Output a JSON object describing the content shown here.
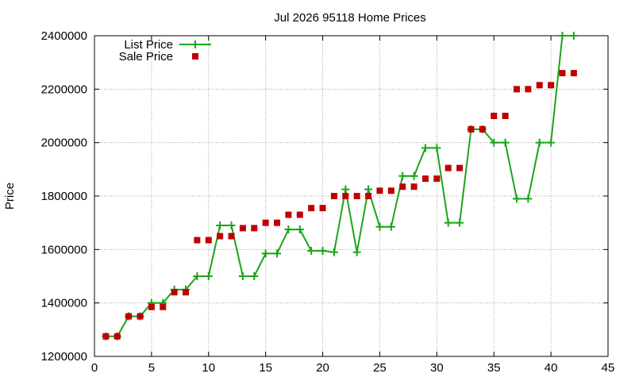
{
  "chart_data": {
    "type": "scatter",
    "title": "Jul 2026 95118 Home Prices",
    "xlabel": "",
    "ylabel": "Price",
    "xlim": [
      0,
      45
    ],
    "ylim": [
      1200000,
      2400000
    ],
    "x_ticks": [
      0,
      5,
      10,
      15,
      20,
      25,
      30,
      35,
      40,
      45
    ],
    "y_ticks": [
      1200000,
      1400000,
      1600000,
      1800000,
      2000000,
      2200000,
      2400000
    ],
    "grid": true,
    "legend_position": "top-left",
    "series": [
      {
        "name": "List Price",
        "style": "linespoints",
        "color": "#1aa51a",
        "x": [
          1,
          2,
          3,
          4,
          5,
          6,
          7,
          8,
          9,
          10,
          11,
          12,
          13,
          14,
          15,
          16,
          17,
          18,
          19,
          20,
          21,
          22,
          23,
          24,
          25,
          26,
          27,
          28,
          29,
          30,
          31,
          32,
          33,
          34,
          35,
          36,
          37,
          38,
          39,
          40,
          41,
          42
        ],
        "y": [
          1275000,
          1275000,
          1350000,
          1350000,
          1400000,
          1400000,
          1450000,
          1450000,
          1500000,
          1500000,
          1690000,
          1690000,
          1500000,
          1500000,
          1585000,
          1585000,
          1675000,
          1675000,
          1595000,
          1595000,
          1590000,
          1825000,
          1590000,
          1825000,
          1685000,
          1685000,
          1875000,
          1875000,
          1980000,
          1980000,
          1700000,
          1700000,
          2050000,
          2050000,
          2000000,
          2000000,
          1790000,
          1790000,
          2000000,
          2000000,
          2400000,
          2400000
        ]
      },
      {
        "name": "Sale Price",
        "style": "points",
        "color": "#c00000",
        "x": [
          1,
          2,
          3,
          4,
          5,
          6,
          7,
          8,
          9,
          10,
          11,
          12,
          13,
          14,
          15,
          16,
          17,
          18,
          19,
          20,
          21,
          22,
          23,
          24,
          25,
          26,
          27,
          28,
          29,
          30,
          31,
          32,
          33,
          34,
          35,
          36,
          37,
          38,
          39,
          40,
          41,
          42
        ],
        "y": [
          1275000,
          1275000,
          1350000,
          1350000,
          1385000,
          1385000,
          1440000,
          1440000,
          1635000,
          1635000,
          1650000,
          1650000,
          1680000,
          1680000,
          1700000,
          1700000,
          1730000,
          1730000,
          1755000,
          1755000,
          1800000,
          1800000,
          1800000,
          1800000,
          1820000,
          1820000,
          1835000,
          1835000,
          1865000,
          1865000,
          1905000,
          1905000,
          2050000,
          2050000,
          2100000,
          2100000,
          2200000,
          2200000,
          2215000,
          2215000,
          2260000,
          2260000
        ]
      }
    ]
  }
}
